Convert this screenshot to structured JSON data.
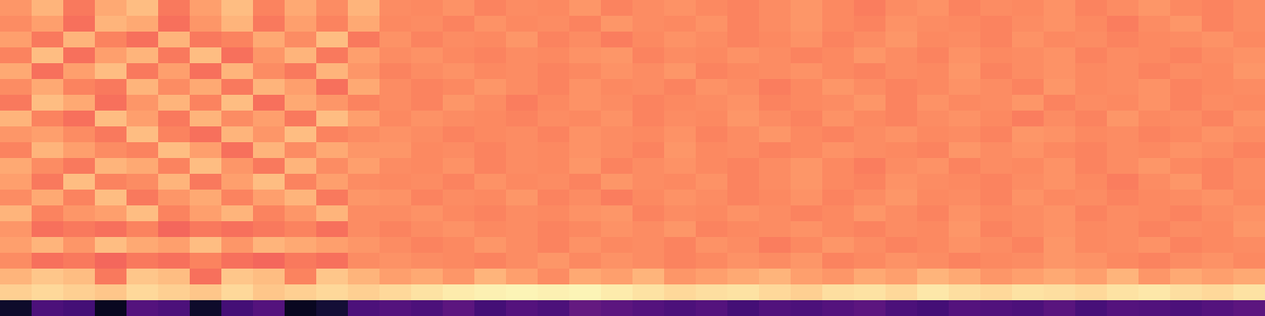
{
  "chart_data": {
    "type": "heatmap",
    "color": "magma",
    "tick_labels": false,
    "color_range": [
      0,
      100
    ],
    "values": [
      [
        78,
        84,
        72,
        82,
        86,
        72,
        80,
        86,
        74,
        82,
        76,
        84,
        76,
        75,
        77,
        74,
        76,
        75,
        78,
        74,
        76,
        77,
        75,
        74,
        76,
        78,
        75,
        73,
        76,
        77,
        74,
        76,
        75,
        77,
        74,
        76,
        78,
        75,
        74,
        76
      ],
      [
        76,
        80,
        70,
        84,
        82,
        70,
        78,
        84,
        72,
        80,
        74,
        82,
        75,
        76,
        74,
        77,
        75,
        76,
        74,
        78,
        76,
        75,
        77,
        74,
        76,
        78,
        75,
        74,
        77,
        76,
        75,
        74,
        76,
        77,
        75,
        73,
        76,
        78,
        74,
        76
      ],
      [
        80,
        72,
        84,
        74,
        70,
        84,
        72,
        74,
        82,
        76,
        86,
        72,
        77,
        74,
        76,
        75,
        78,
        74,
        76,
        73,
        75,
        77,
        76,
        74,
        75,
        77,
        74,
        76,
        78,
        75,
        76,
        74,
        77,
        75,
        76,
        74,
        75,
        76,
        77,
        75
      ],
      [
        74,
        86,
        70,
        80,
        84,
        72,
        86,
        70,
        78,
        84,
        72,
        80,
        76,
        77,
        75,
        74,
        76,
        75,
        77,
        78,
        74,
        76,
        75,
        77,
        76,
        74,
        75,
        78,
        76,
        74,
        77,
        75,
        76,
        77,
        74,
        76,
        75,
        74,
        76,
        77
      ],
      [
        82,
        70,
        80,
        86,
        72,
        80,
        70,
        84,
        76,
        72,
        84,
        78,
        74,
        76,
        77,
        75,
        76,
        74,
        75,
        77,
        76,
        78,
        74,
        75,
        76,
        77,
        75,
        74,
        76,
        75,
        78,
        74,
        76,
        77,
        75,
        76,
        74,
        76,
        75,
        78
      ],
      [
        76,
        82,
        74,
        72,
        84,
        76,
        82,
        72,
        84,
        80,
        70,
        82,
        76,
        74,
        75,
        78,
        76,
        74,
        77,
        75,
        76,
        74,
        77,
        76,
        73,
        75,
        78,
        76,
        74,
        75,
        77,
        76,
        74,
        78,
        75,
        76,
        77,
        74,
        75,
        76
      ],
      [
        72,
        86,
        82,
        70,
        78,
        84,
        74,
        86,
        70,
        82,
        78,
        74,
        76,
        74,
        78,
        76,
        73,
        75,
        77,
        76,
        74,
        75,
        76,
        77,
        74,
        75,
        76,
        78,
        74,
        77,
        75,
        76,
        78,
        74,
        76,
        75,
        77,
        74,
        76,
        75
      ],
      [
        84,
        74,
        70,
        86,
        80,
        72,
        84,
        76,
        80,
        72,
        86,
        80,
        75,
        77,
        76,
        75,
        74,
        76,
        75,
        77,
        74,
        76,
        75,
        78,
        76,
        74,
        77,
        75,
        74,
        76,
        77,
        75,
        73,
        76,
        74,
        78,
        75,
        76,
        74,
        77
      ],
      [
        78,
        80,
        76,
        72,
        86,
        74,
        70,
        84,
        78,
        86,
        74,
        76,
        77,
        76,
        74,
        75,
        76,
        74,
        77,
        76,
        75,
        77,
        74,
        76,
        78,
        75,
        74,
        76,
        77,
        75,
        76,
        74,
        78,
        77,
        75,
        76,
        74,
        75,
        77,
        76
      ],
      [
        74,
        84,
        80,
        76,
        74,
        86,
        80,
        70,
        84,
        76,
        82,
        78,
        78,
        75,
        76,
        74,
        76,
        75,
        77,
        76,
        74,
        78,
        75,
        76,
        74,
        75,
        77,
        76,
        75,
        74,
        78,
        76,
        77,
        75,
        74,
        76,
        75,
        77,
        76,
        74
      ],
      [
        82,
        76,
        72,
        84,
        82,
        74,
        86,
        78,
        72,
        84,
        76,
        80,
        76,
        75,
        77,
        74,
        76,
        75,
        78,
        74,
        76,
        77,
        75,
        74,
        76,
        78,
        75,
        73,
        76,
        77,
        74,
        76,
        75,
        77,
        74,
        76,
        78,
        75,
        74,
        76
      ],
      [
        80,
        72,
        86,
        74,
        76,
        84,
        72,
        80,
        86,
        74,
        80,
        76,
        75,
        76,
        74,
        77,
        75,
        76,
        74,
        78,
        76,
        75,
        77,
        74,
        76,
        78,
        75,
        74,
        77,
        76,
        75,
        74,
        76,
        77,
        75,
        73,
        76,
        78,
        74,
        76
      ],
      [
        76,
        82,
        74,
        86,
        72,
        78,
        82,
        74,
        80,
        84,
        72,
        78,
        77,
        74,
        76,
        75,
        78,
        74,
        76,
        73,
        75,
        77,
        76,
        74,
        75,
        77,
        74,
        76,
        78,
        75,
        76,
        74,
        77,
        75,
        76,
        74,
        75,
        76,
        77,
        75
      ],
      [
        84,
        74,
        78,
        80,
        86,
        74,
        80,
        84,
        74,
        78,
        84,
        76,
        76,
        77,
        75,
        74,
        76,
        75,
        77,
        78,
        74,
        76,
        75,
        77,
        76,
        74,
        75,
        78,
        76,
        74,
        77,
        75,
        76,
        77,
        74,
        76,
        75,
        74,
        76,
        77
      ],
      [
        78,
        70,
        72,
        70,
        74,
        68,
        72,
        70,
        72,
        74,
        70,
        76,
        74,
        76,
        77,
        75,
        76,
        74,
        75,
        77,
        76,
        78,
        74,
        75,
        76,
        77,
        75,
        74,
        76,
        75,
        78,
        74,
        76,
        77,
        75,
        76,
        74,
        76,
        75,
        78
      ],
      [
        80,
        84,
        78,
        86,
        82,
        80,
        86,
        78,
        84,
        82,
        80,
        78,
        76,
        74,
        75,
        78,
        76,
        74,
        77,
        75,
        76,
        74,
        77,
        76,
        73,
        75,
        78,
        76,
        74,
        75,
        77,
        76,
        74,
        78,
        75,
        76,
        77,
        74,
        75,
        76
      ],
      [
        76,
        70,
        72,
        68,
        72,
        70,
        74,
        70,
        68,
        72,
        70,
        76,
        77,
        76,
        75,
        74,
        76,
        78,
        75,
        77,
        76,
        74,
        75,
        77,
        76,
        78,
        74,
        75,
        77,
        76,
        74,
        75,
        76,
        78,
        77,
        75,
        74,
        76,
        77,
        75
      ],
      [
        84,
        88,
        86,
        72,
        88,
        86,
        70,
        88,
        86,
        74,
        88,
        84,
        80,
        82,
        78,
        84,
        80,
        76,
        82,
        80,
        84,
        78,
        80,
        82,
        84,
        80,
        78,
        82,
        80,
        84,
        82,
        78,
        80,
        82,
        80,
        84,
        78,
        82,
        80,
        82
      ],
      [
        90,
        92,
        90,
        88,
        92,
        90,
        88,
        92,
        88,
        90,
        92,
        90,
        92,
        94,
        96,
        97,
        98,
        97,
        98,
        96,
        94,
        92,
        93,
        94,
        92,
        90,
        93,
        94,
        92,
        95,
        93,
        92,
        94,
        93,
        92,
        94,
        95,
        93,
        92,
        94
      ],
      [
        8,
        24,
        22,
        6,
        26,
        24,
        8,
        22,
        26,
        6,
        10,
        24,
        26,
        24,
        28,
        22,
        26,
        24,
        30,
        28,
        26,
        24,
        26,
        22,
        25,
        24,
        26,
        28,
        24,
        22,
        26,
        25,
        24,
        27,
        23,
        26,
        25,
        24,
        26,
        28
      ]
    ]
  }
}
